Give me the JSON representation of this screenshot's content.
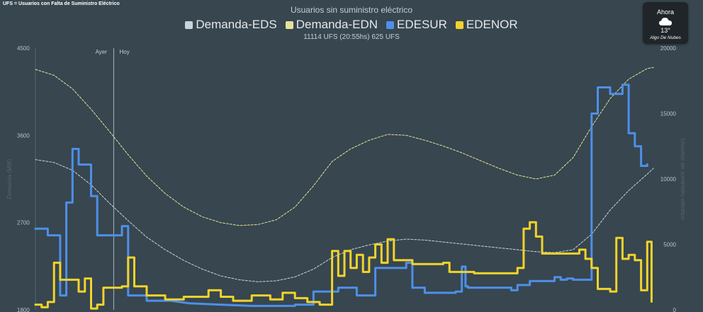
{
  "footnote": "UFS = Usuarios con Falta de Suministro Eléctrico",
  "weather": {
    "label": "Ahora",
    "icon": "cloud-icon",
    "temperature": "13°",
    "description": "Algo De Nubes"
  },
  "chart_data": {
    "type": "line",
    "title": "Usuarios sin suministro eléctrico",
    "subtitle": "11114 UFS (20:55hs) 625 UFS",
    "ylabel": "Demanda (MW)",
    "y2label": "Usuarios sin suministro eléctrico",
    "ylim": [
      1800,
      4500
    ],
    "y2lim": [
      0,
      20000
    ],
    "yticks": [
      "4500",
      "3600",
      "2700",
      "1800"
    ],
    "y2ticks": [
      "20000",
      "15000",
      "10000",
      "5000",
      "0"
    ],
    "xlim": [
      0,
      100
    ],
    "markers": [
      {
        "label": "Ayer",
        "x": 11.8
      },
      {
        "label": "Hoy",
        "x": 12.9
      }
    ],
    "grid": false,
    "legend_position": "top",
    "series": [
      {
        "name": "Demanda-EDS",
        "axis": "left",
        "style": "dashed",
        "color": "#c9d4df",
        "points": [
          [
            0,
            3350
          ],
          [
            3,
            3320
          ],
          [
            6,
            3240
          ],
          [
            9,
            3090
          ],
          [
            12,
            2900
          ],
          [
            15,
            2720
          ],
          [
            18,
            2550
          ],
          [
            21,
            2420
          ],
          [
            24,
            2310
          ],
          [
            27,
            2220
          ],
          [
            30,
            2150
          ],
          [
            33,
            2110
          ],
          [
            36,
            2090
          ],
          [
            39,
            2100
          ],
          [
            42,
            2140
          ],
          [
            45,
            2220
          ],
          [
            48,
            2340
          ],
          [
            51,
            2420
          ],
          [
            54,
            2470
          ],
          [
            57,
            2510
          ],
          [
            60,
            2530
          ],
          [
            63,
            2520
          ],
          [
            66,
            2500
          ],
          [
            69,
            2480
          ],
          [
            72,
            2460
          ],
          [
            75,
            2440
          ],
          [
            78,
            2420
          ],
          [
            81,
            2400
          ],
          [
            84,
            2390
          ],
          [
            87,
            2420
          ],
          [
            90,
            2580
          ],
          [
            93,
            2830
          ],
          [
            96,
            3030
          ],
          [
            99,
            3200
          ],
          [
            100,
            3260
          ]
        ]
      },
      {
        "name": "Demanda-EDN",
        "axis": "left",
        "style": "dashed",
        "color": "#e6e29a",
        "points": [
          [
            0,
            4280
          ],
          [
            3,
            4220
          ],
          [
            6,
            4080
          ],
          [
            9,
            3870
          ],
          [
            12,
            3640
          ],
          [
            15,
            3400
          ],
          [
            18,
            3180
          ],
          [
            21,
            3000
          ],
          [
            24,
            2860
          ],
          [
            27,
            2760
          ],
          [
            30,
            2700
          ],
          [
            33,
            2670
          ],
          [
            36,
            2680
          ],
          [
            39,
            2730
          ],
          [
            42,
            2860
          ],
          [
            45,
            3080
          ],
          [
            48,
            3330
          ],
          [
            51,
            3460
          ],
          [
            54,
            3550
          ],
          [
            57,
            3610
          ],
          [
            60,
            3600
          ],
          [
            63,
            3550
          ],
          [
            66,
            3490
          ],
          [
            69,
            3420
          ],
          [
            72,
            3340
          ],
          [
            75,
            3260
          ],
          [
            78,
            3190
          ],
          [
            81,
            3150
          ],
          [
            84,
            3190
          ],
          [
            87,
            3370
          ],
          [
            90,
            3690
          ],
          [
            93,
            3980
          ],
          [
            96,
            4180
          ],
          [
            99,
            4290
          ],
          [
            100,
            4300
          ]
        ]
      },
      {
        "name": "EDESUR",
        "axis": "right",
        "style": "solid",
        "color": "#4f8fe8",
        "points": [
          [
            0,
            6200
          ],
          [
            2,
            6200
          ],
          [
            2,
            5700
          ],
          [
            4,
            5700
          ],
          [
            4,
            1100
          ],
          [
            5,
            1100
          ],
          [
            5,
            8200
          ],
          [
            6,
            8200
          ],
          [
            6,
            12300
          ],
          [
            7,
            12300
          ],
          [
            7,
            11100
          ],
          [
            9,
            11100
          ],
          [
            9,
            8700
          ],
          [
            10,
            8700
          ],
          [
            10,
            5700
          ],
          [
            12,
            5700
          ],
          [
            14,
            5700
          ],
          [
            14,
            6400
          ],
          [
            15,
            6400
          ],
          [
            15,
            1100
          ],
          [
            18,
            1100
          ],
          [
            18,
            700
          ],
          [
            22,
            700
          ],
          [
            25,
            500
          ],
          [
            30,
            400
          ],
          [
            35,
            300
          ],
          [
            40,
            300
          ],
          [
            42,
            300
          ],
          [
            42,
            400
          ],
          [
            45,
            400
          ],
          [
            45,
            1400
          ],
          [
            49,
            1400
          ],
          [
            49,
            1700
          ],
          [
            52,
            1700
          ],
          [
            52,
            1100
          ],
          [
            55,
            1100
          ],
          [
            55,
            3200
          ],
          [
            60,
            3200
          ],
          [
            60,
            3600
          ],
          [
            61,
            3600
          ],
          [
            61,
            1700
          ],
          [
            63,
            1700
          ],
          [
            63,
            1300
          ],
          [
            68,
            1300
          ],
          [
            68,
            1400
          ],
          [
            69,
            1400
          ],
          [
            69,
            3300
          ],
          [
            69.6,
            3300
          ],
          [
            69.6,
            1800
          ],
          [
            70,
            1800
          ],
          [
            70,
            1700
          ],
          [
            77,
            1700
          ],
          [
            77,
            1500
          ],
          [
            78,
            1500
          ],
          [
            78,
            1900
          ],
          [
            80,
            1900
          ],
          [
            80,
            2200
          ],
          [
            84,
            2200
          ],
          [
            84,
            2500
          ],
          [
            85,
            2500
          ],
          [
            85,
            2300
          ],
          [
            86,
            2300
          ],
          [
            86,
            2400
          ],
          [
            87,
            2400
          ],
          [
            87,
            2300
          ],
          [
            89,
            2300
          ],
          [
            90,
            2300
          ],
          [
            90,
            15000
          ],
          [
            91,
            15000
          ],
          [
            91,
            17000
          ],
          [
            93,
            17000
          ],
          [
            93,
            16500
          ],
          [
            95,
            16500
          ],
          [
            95,
            17200
          ],
          [
            96,
            17200
          ],
          [
            96,
            13500
          ],
          [
            97,
            13500
          ],
          [
            97,
            12500
          ],
          [
            98,
            12500
          ],
          [
            98,
            11000
          ],
          [
            99,
            11000
          ],
          [
            99,
            11114
          ]
        ]
      },
      {
        "name": "EDENOR",
        "axis": "right",
        "style": "solid",
        "color": "#f2d32b",
        "points": [
          [
            0,
            400
          ],
          [
            1,
            400
          ],
          [
            1,
            200
          ],
          [
            2,
            200
          ],
          [
            2,
            600
          ],
          [
            3,
            600
          ],
          [
            3,
            3600
          ],
          [
            4,
            3600
          ],
          [
            4,
            2300
          ],
          [
            7,
            2300
          ],
          [
            7,
            1400
          ],
          [
            8,
            1400
          ],
          [
            8,
            2400
          ],
          [
            9,
            2400
          ],
          [
            9,
            100
          ],
          [
            10,
            100
          ],
          [
            10,
            400
          ],
          [
            11,
            400
          ],
          [
            11,
            1700
          ],
          [
            14,
            1700
          ],
          [
            14,
            1800
          ],
          [
            15,
            1800
          ],
          [
            15,
            4000
          ],
          [
            16,
            4000
          ],
          [
            16,
            1800
          ],
          [
            18,
            1800
          ],
          [
            18,
            1100
          ],
          [
            21,
            1100
          ],
          [
            21,
            800
          ],
          [
            24,
            800
          ],
          [
            24,
            1000
          ],
          [
            28,
            1000
          ],
          [
            28,
            1500
          ],
          [
            30,
            1500
          ],
          [
            30,
            1000
          ],
          [
            32,
            1000
          ],
          [
            32,
            700
          ],
          [
            35,
            700
          ],
          [
            35,
            1100
          ],
          [
            38,
            1100
          ],
          [
            38,
            800
          ],
          [
            40,
            800
          ],
          [
            40,
            1300
          ],
          [
            42,
            1300
          ],
          [
            42,
            900
          ],
          [
            44,
            900
          ],
          [
            44,
            600
          ],
          [
            46,
            600
          ],
          [
            46,
            400
          ],
          [
            48,
            400
          ],
          [
            48,
            4500
          ],
          [
            49,
            4500
          ],
          [
            49,
            2600
          ],
          [
            50,
            2600
          ],
          [
            50,
            4500
          ],
          [
            51,
            4500
          ],
          [
            51,
            3200
          ],
          [
            52,
            3200
          ],
          [
            52,
            4200
          ],
          [
            53,
            4200
          ],
          [
            53,
            2900
          ],
          [
            54,
            2900
          ],
          [
            54,
            4000
          ],
          [
            55,
            4000
          ],
          [
            55,
            5000
          ],
          [
            56,
            5000
          ],
          [
            56,
            3600
          ],
          [
            57,
            3600
          ],
          [
            57,
            5400
          ],
          [
            58,
            5400
          ],
          [
            58,
            3800
          ],
          [
            61,
            3800
          ],
          [
            61,
            3500
          ],
          [
            66,
            3500
          ],
          [
            66,
            3600
          ],
          [
            67,
            3600
          ],
          [
            67,
            2900
          ],
          [
            71,
            2900
          ],
          [
            71,
            2800
          ],
          [
            78,
            2800
          ],
          [
            78,
            3200
          ],
          [
            79,
            3200
          ],
          [
            79,
            6200
          ],
          [
            80,
            6200
          ],
          [
            80,
            6700
          ],
          [
            81,
            6700
          ],
          [
            81,
            5600
          ],
          [
            82,
            5600
          ],
          [
            82,
            4300
          ],
          [
            88,
            4300
          ],
          [
            88,
            4600
          ],
          [
            89,
            4600
          ],
          [
            89,
            3900
          ],
          [
            90,
            3900
          ],
          [
            90,
            3200
          ],
          [
            91,
            3200
          ],
          [
            91,
            1600
          ],
          [
            93,
            1600
          ],
          [
            93,
            1400
          ],
          [
            94,
            1400
          ],
          [
            94,
            5500
          ],
          [
            95,
            5500
          ],
          [
            95,
            3900
          ],
          [
            96,
            3900
          ],
          [
            96,
            4200
          ],
          [
            97,
            4200
          ],
          [
            97,
            3800
          ],
          [
            98,
            3800
          ],
          [
            98,
            1500
          ],
          [
            99,
            1500
          ],
          [
            99,
            5200
          ],
          [
            99.7,
            5200
          ],
          [
            99.7,
            625
          ]
        ]
      }
    ]
  }
}
